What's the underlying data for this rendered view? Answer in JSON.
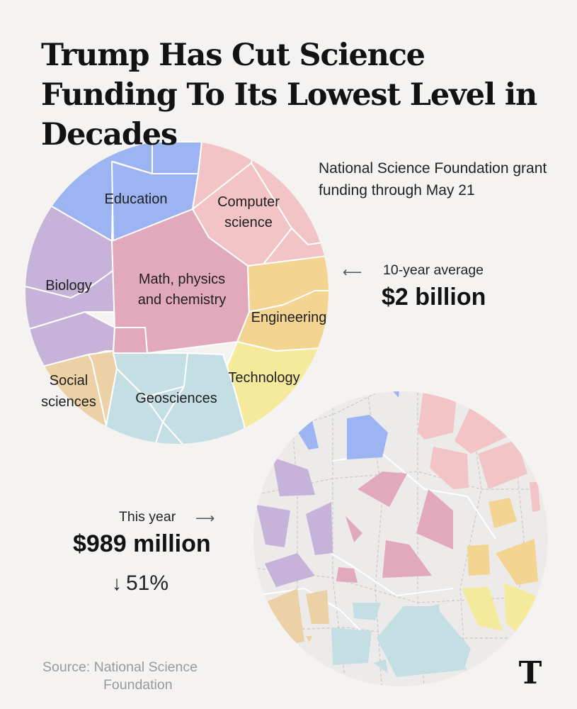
{
  "title": "Trump Has Cut Science Funding To Its Lowest Level in Decades",
  "subtitle": "National Science Foundation grant funding through May 21",
  "average": {
    "label": "10-year average",
    "value_text": "$2 billion",
    "arrow": "⟵"
  },
  "this_year": {
    "label": "This year",
    "value_text": "$989 million",
    "arrow": "⟶",
    "change_arrow": "↓",
    "change_text": "51%"
  },
  "source": {
    "line1": "Source: National Science",
    "line2": "Foundation"
  },
  "logo": "T",
  "colors": {
    "education": "#9db4f2",
    "computer_science": "#f2c4c6",
    "biology": "#c7b3d9",
    "math_physics_chemistry": "#e2a9bd",
    "engineering": "#f3d591",
    "technology": "#f5ea9c",
    "social_sciences": "#ecd1a6",
    "geosciences": "#c3dfe4",
    "empty_cell": "#ecebea",
    "background": "#f4f3f1"
  },
  "chart_data": {
    "type": "voronoi-treemap",
    "unit": "USD",
    "categories": [
      "Education",
      "Computer science",
      "Biology",
      "Math, physics and chemistry",
      "Engineering",
      "Technology",
      "Social sciences",
      "Geosciences"
    ],
    "series": [
      {
        "name": "10-year average",
        "total_text": "$2 billion",
        "total": 2000000000
      },
      {
        "name": "This year",
        "total_text": "$989 million",
        "total": 989000000,
        "change_pct": -51
      }
    ]
  }
}
